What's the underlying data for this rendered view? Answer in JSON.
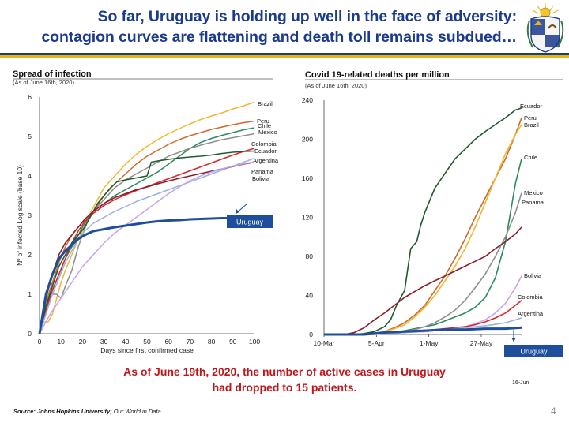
{
  "title": {
    "line1": "So far, Uruguay is holding up well in the face of adversity:",
    "line2": "contagion curves are flattening and death toll remains subdued…"
  },
  "colors": {
    "title": "#1a3a8c",
    "accent_gold": "#e5b417",
    "note_red": "#c0161b",
    "uruguay_box": "#1f4e9c"
  },
  "chart_data": [
    {
      "type": "line",
      "title": "Spread of infection",
      "subtitle": "(As of June 16th, 2020)",
      "xlabel": "Days since first confirmed case",
      "ylabel": "Nº of infected Log scale (base 10)",
      "xlim": [
        0,
        100
      ],
      "ylim": [
        0,
        6
      ],
      "xticks": [
        "0",
        "10",
        "20",
        "30",
        "40",
        "50",
        "60",
        "70",
        "80",
        "90",
        "100"
      ],
      "yticks": [
        "0",
        "1",
        "2",
        "3",
        "4",
        "5",
        "6"
      ],
      "highlight_box": "Uruguay",
      "series": [
        {
          "name": "Brazil",
          "color": "#f2b632",
          "label": "Brazil",
          "x": [
            0,
            2,
            4,
            6,
            8,
            10,
            12,
            15,
            18,
            20,
            23,
            25,
            28,
            30,
            35,
            40,
            45,
            50,
            55,
            60,
            65,
            70,
            75,
            80,
            85,
            90,
            95,
            100
          ],
          "y": [
            0,
            0.3,
            0.3,
            0.5,
            0.9,
            1.3,
            1.6,
            2.0,
            2.4,
            2.6,
            3.0,
            3.2,
            3.5,
            3.7,
            4.0,
            4.3,
            4.55,
            4.75,
            4.92,
            5.07,
            5.2,
            5.32,
            5.43,
            5.52,
            5.6,
            5.7,
            5.78,
            5.87
          ]
        },
        {
          "name": "Peru",
          "color": "#d06a2a",
          "label": "Peru",
          "x": [
            0,
            3,
            6,
            9,
            12,
            15,
            18,
            21,
            25,
            30,
            35,
            40,
            45,
            50,
            55,
            60,
            65,
            70,
            75,
            80,
            85,
            90,
            95,
            100
          ],
          "y": [
            0,
            0.8,
            1.3,
            1.8,
            2.2,
            2.5,
            2.7,
            2.9,
            3.1,
            3.5,
            3.8,
            4.05,
            4.3,
            4.5,
            4.65,
            4.8,
            4.92,
            5.02,
            5.1,
            5.18,
            5.24,
            5.3,
            5.35,
            5.39
          ]
        },
        {
          "name": "Chile",
          "color": "#2a8a5a",
          "label": "Chile",
          "x": [
            0,
            3,
            6,
            9,
            12,
            15,
            18,
            21,
            25,
            30,
            35,
            40,
            45,
            50,
            55,
            60,
            65,
            70,
            75,
            80,
            85,
            90,
            95,
            100
          ],
          "y": [
            0,
            0.7,
            1.1,
            1.5,
            1.9,
            2.2,
            2.5,
            2.8,
            3.1,
            3.3,
            3.5,
            3.65,
            3.8,
            3.95,
            4.1,
            4.3,
            4.5,
            4.7,
            4.85,
            4.95,
            5.03,
            5.1,
            5.17,
            5.22
          ]
        },
        {
          "name": "Mexico",
          "color": "#8e8e8e",
          "label": "Mexico",
          "x": [
            0,
            3,
            6,
            8,
            10,
            12,
            15,
            18,
            20,
            22,
            25,
            30,
            35,
            40,
            45,
            50,
            55,
            60,
            65,
            70,
            75,
            80,
            85,
            90,
            95,
            100
          ],
          "y": [
            0,
            0.9,
            1.0,
            1.0,
            0.9,
            1.2,
            1.6,
            2.2,
            2.5,
            2.8,
            3.1,
            3.4,
            3.7,
            3.9,
            4.05,
            4.2,
            4.35,
            4.5,
            4.6,
            4.7,
            4.78,
            4.85,
            4.92,
            4.97,
            5.02,
            5.07
          ]
        },
        {
          "name": "Colombia",
          "color": "#d8262f",
          "label": "Colombia",
          "x": [
            0,
            3,
            6,
            9,
            12,
            15,
            18,
            21,
            25,
            30,
            35,
            40,
            45,
            50,
            55,
            60,
            65,
            70,
            75,
            80,
            85,
            90,
            95,
            100
          ],
          "y": [
            0,
            0.6,
            1.1,
            1.5,
            1.9,
            2.3,
            2.6,
            2.85,
            3.05,
            3.25,
            3.4,
            3.52,
            3.63,
            3.73,
            3.83,
            3.93,
            4.03,
            4.13,
            4.23,
            4.33,
            4.43,
            4.53,
            4.62,
            4.7
          ]
        },
        {
          "name": "Ecuador",
          "color": "#1f5a2e",
          "label": "Ecuador",
          "x": [
            0,
            3,
            6,
            9,
            12,
            15,
            18,
            21,
            24,
            27,
            30,
            33,
            36,
            40,
            45,
            50,
            52,
            55,
            60,
            63,
            66,
            70,
            75,
            80,
            85,
            90,
            95,
            100
          ],
          "y": [
            0,
            0.7,
            1.2,
            1.7,
            2.0,
            2.3,
            2.5,
            2.7,
            3.0,
            3.3,
            3.5,
            3.7,
            3.85,
            3.9,
            3.95,
            4.0,
            4.35,
            4.38,
            4.42,
            4.44,
            4.46,
            4.48,
            4.5,
            4.53,
            4.57,
            4.6,
            4.62,
            4.63
          ]
        },
        {
          "name": "Argentina",
          "color": "#9ab1e3",
          "label": "Argentina",
          "x": [
            0,
            3,
            6,
            9,
            12,
            15,
            18,
            21,
            25,
            30,
            35,
            40,
            45,
            50,
            55,
            60,
            65,
            70,
            75,
            80,
            85,
            90,
            95,
            100
          ],
          "y": [
            0,
            0.5,
            1.0,
            1.4,
            1.8,
            2.1,
            2.4,
            2.6,
            2.8,
            2.95,
            3.1,
            3.22,
            3.35,
            3.45,
            3.55,
            3.65,
            3.75,
            3.85,
            3.95,
            4.05,
            4.15,
            4.25,
            4.35,
            4.45
          ]
        },
        {
          "name": "Panama",
          "color": "#8a1c2a",
          "label": "Panama",
          "x": [
            0,
            3,
            6,
            9,
            12,
            15,
            18,
            21,
            25,
            30,
            35,
            40,
            45,
            50,
            55,
            60,
            65,
            70,
            75,
            80,
            85,
            90,
            95,
            100
          ],
          "y": [
            0,
            0.9,
            1.5,
            2.0,
            2.3,
            2.5,
            2.7,
            2.9,
            3.1,
            3.3,
            3.45,
            3.55,
            3.65,
            3.72,
            3.8,
            3.87,
            3.94,
            4.0,
            4.06,
            4.12,
            4.18,
            4.24,
            4.3,
            4.35
          ]
        },
        {
          "name": "Bolivia",
          "color": "#c7a4e8",
          "label": "Bolivia",
          "x": [
            0,
            5,
            10,
            15,
            20,
            25,
            30,
            35,
            40,
            45,
            50,
            55,
            60,
            65,
            70,
            75,
            80,
            85,
            90,
            95,
            100
          ],
          "y": [
            0,
            0.5,
            0.9,
            1.3,
            1.7,
            2.0,
            2.3,
            2.55,
            2.75,
            2.95,
            3.15,
            3.35,
            3.55,
            3.72,
            3.88,
            4.0,
            4.1,
            4.18,
            4.25,
            4.31,
            4.36
          ]
        },
        {
          "name": "Uruguay",
          "color": "#1f4e9c",
          "label": "",
          "bold": true,
          "x": [
            0,
            3,
            6,
            9,
            12,
            15,
            18,
            21,
            25,
            30,
            35,
            40,
            45,
            50,
            55,
            60,
            65,
            70,
            75,
            80,
            85,
            90,
            95
          ],
          "y": [
            0,
            1.0,
            1.5,
            1.9,
            2.1,
            2.25,
            2.4,
            2.5,
            2.6,
            2.65,
            2.7,
            2.74,
            2.78,
            2.82,
            2.85,
            2.87,
            2.88,
            2.9,
            2.91,
            2.92,
            2.93,
            2.93,
            2.94
          ]
        }
      ]
    },
    {
      "type": "line",
      "title": "Covid 19-related deaths per million",
      "subtitle": "(As of June 16th, 2020)",
      "x_range_days": [
        0,
        98
      ],
      "ylim": [
        0,
        240
      ],
      "yticks": [
        "0",
        "40",
        "80",
        "120",
        "160",
        "200",
        "240"
      ],
      "xticks": [
        {
          "label": "10-Mar",
          "day": 0
        },
        {
          "label": "5-Apr",
          "day": 26
        },
        {
          "label": "1-May",
          "day": 52
        },
        {
          "label": "27-May",
          "day": 78
        }
      ],
      "end_date_label": "16-Jun",
      "highlight_box": "Uruguay",
      "series": [
        {
          "name": "Ecuador",
          "color": "#1f5a2e",
          "label": "Ecuador",
          "x": [
            0,
            15,
            20,
            25,
            30,
            33,
            36,
            40,
            43,
            46,
            48,
            50,
            55,
            60,
            65,
            70,
            75,
            80,
            85,
            90,
            95,
            98
          ],
          "y": [
            0,
            0,
            1,
            3,
            8,
            15,
            30,
            45,
            88,
            95,
            112,
            125,
            150,
            165,
            180,
            190,
            200,
            208,
            215,
            222,
            230,
            232
          ]
        },
        {
          "name": "Peru",
          "color": "#d06a2a",
          "label": "Peru",
          "x": [
            0,
            20,
            25,
            30,
            35,
            40,
            45,
            50,
            55,
            60,
            65,
            70,
            75,
            80,
            85,
            90,
            95,
            98
          ],
          "y": [
            0,
            0,
            1,
            3,
            7,
            12,
            20,
            30,
            45,
            60,
            78,
            98,
            120,
            140,
            160,
            180,
            205,
            222
          ]
        },
        {
          "name": "Brazil",
          "color": "#f2b632",
          "label": "Brazil",
          "x": [
            0,
            20,
            25,
            30,
            35,
            40,
            45,
            50,
            55,
            60,
            65,
            70,
            75,
            80,
            85,
            90,
            95,
            98
          ],
          "y": [
            0,
            0,
            1,
            3,
            6,
            10,
            18,
            28,
            40,
            55,
            70,
            88,
            110,
            135,
            160,
            185,
            205,
            215
          ]
        },
        {
          "name": "Chile",
          "color": "#2a8a5a",
          "label": "Chile",
          "x": [
            0,
            25,
            30,
            35,
            40,
            45,
            50,
            55,
            60,
            65,
            70,
            75,
            80,
            85,
            90,
            95,
            98
          ],
          "y": [
            0,
            0,
            1,
            2,
            4,
            6,
            8,
            10,
            14,
            18,
            22,
            28,
            38,
            58,
            95,
            155,
            180
          ]
        },
        {
          "name": "Mexico",
          "color": "#8e8e8e",
          "label": "Mexico",
          "x": [
            0,
            25,
            30,
            35,
            40,
            45,
            50,
            55,
            60,
            65,
            70,
            75,
            80,
            85,
            90,
            95,
            98
          ],
          "y": [
            0,
            0,
            1,
            2,
            3,
            5,
            8,
            12,
            18,
            25,
            35,
            48,
            62,
            80,
            100,
            125,
            145
          ]
        },
        {
          "name": "Panama",
          "color": "#8a1c2a",
          "label": "Panama",
          "x": [
            0,
            10,
            15,
            20,
            25,
            30,
            35,
            40,
            45,
            50,
            55,
            60,
            65,
            70,
            75,
            80,
            85,
            90,
            95,
            98
          ],
          "y": [
            0,
            0,
            2,
            7,
            15,
            22,
            30,
            38,
            44,
            50,
            55,
            60,
            65,
            70,
            75,
            80,
            88,
            95,
            103,
            110
          ]
        },
        {
          "name": "Bolivia",
          "color": "#c7a4e8",
          "label": "Bolivia",
          "x": [
            0,
            25,
            30,
            40,
            50,
            60,
            70,
            75,
            80,
            85,
            90,
            95,
            98
          ],
          "y": [
            0,
            0,
            1,
            2,
            3,
            5,
            8,
            11,
            15,
            22,
            32,
            48,
            60
          ]
        },
        {
          "name": "Colombia",
          "color": "#d8262f",
          "label": "Colombia",
          "x": [
            0,
            25,
            30,
            40,
            50,
            60,
            70,
            75,
            80,
            85,
            90,
            95,
            98
          ],
          "y": [
            0,
            0,
            1,
            2,
            4,
            6,
            8,
            10,
            13,
            17,
            22,
            30,
            35
          ]
        },
        {
          "name": "Argentina",
          "color": "#9ab1e3",
          "label": "Argentina",
          "x": [
            0,
            25,
            30,
            40,
            50,
            60,
            70,
            80,
            90,
            95,
            98
          ],
          "y": [
            0,
            0,
            1,
            2,
            3,
            5,
            7,
            9,
            12,
            15,
            17
          ]
        },
        {
          "name": "Uruguay",
          "color": "#1f4e9c",
          "label": "",
          "bold": true,
          "x": [
            0,
            20,
            25,
            30,
            40,
            50,
            60,
            70,
            80,
            90,
            98
          ],
          "y": [
            0,
            0,
            1,
            2,
            3,
            4,
            5,
            5,
            6,
            6,
            7
          ]
        }
      ]
    }
  ],
  "bottom_note": {
    "line1": "As of June 19th, 2020, the number of active cases in Uruguay",
    "line2": "had dropped to 15 patients."
  },
  "source": {
    "label": "Source: Johns Hopkins University;",
    "rest": " Our World in Data"
  },
  "page_number": "4"
}
